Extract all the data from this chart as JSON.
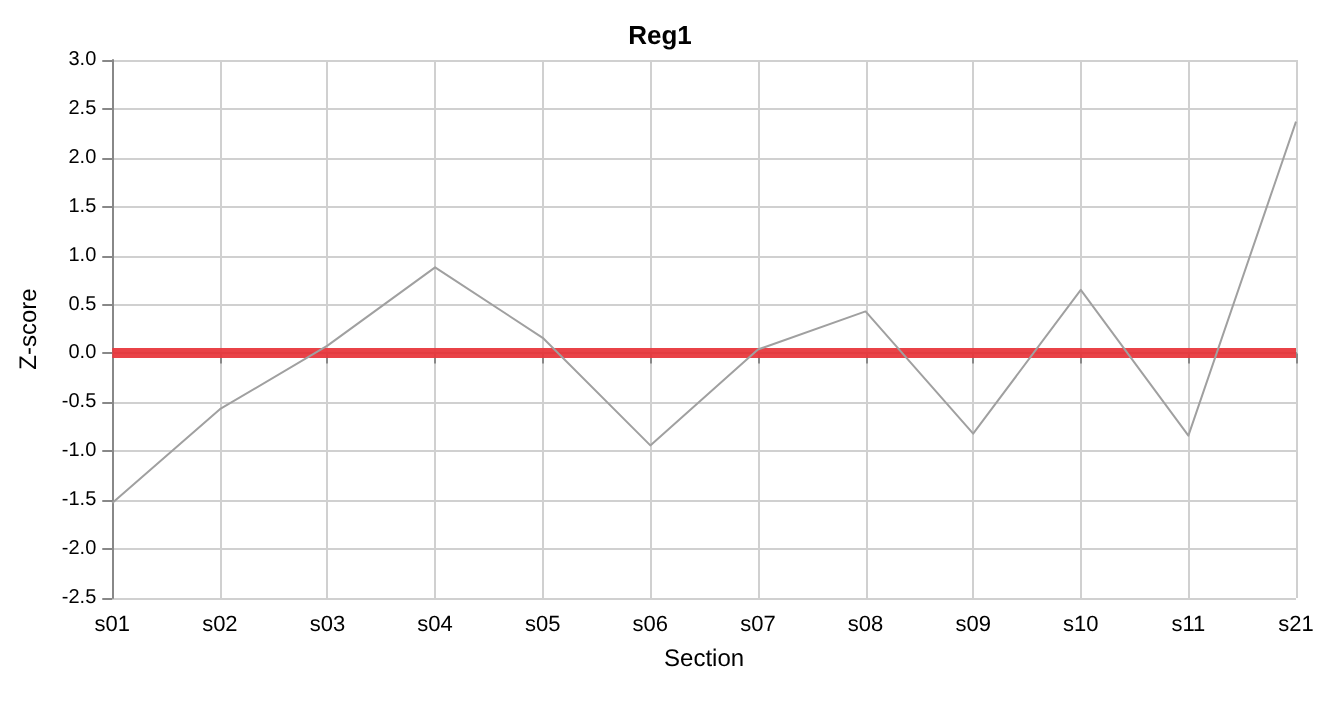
{
  "chart_data": {
    "type": "line",
    "title": "Reg1",
    "xlabel": "Section",
    "ylabel": "Z-score",
    "categories": [
      "s01",
      "s02",
      "s03",
      "s04",
      "s05",
      "s06",
      "s07",
      "s08",
      "s09",
      "s10",
      "s11",
      "s21"
    ],
    "series": [
      {
        "color": "#a0a0a0",
        "values": [
          -1.53,
          -0.57,
          0.08,
          0.88,
          0.16,
          -0.94,
          0.04,
          0.43,
          -0.82,
          0.65,
          -0.84,
          2.37
        ]
      }
    ],
    "ylim": [
      -2.5,
      3.0
    ],
    "yticks": [
      {
        "value": -2.5,
        "label": "-2.5"
      },
      {
        "value": -2,
        "label": "-2.0"
      },
      {
        "value": -1.5,
        "label": "-1.5"
      },
      {
        "value": -1,
        "label": "-1.0"
      },
      {
        "value": -0.5,
        "label": "-0.5"
      },
      {
        "value": 0,
        "label": "0.0"
      },
      {
        "value": 0.5,
        "label": "0.5"
      },
      {
        "value": 1,
        "label": "1.0"
      },
      {
        "value": 1.5,
        "label": "1.5"
      },
      {
        "value": 2,
        "label": "2.0"
      },
      {
        "value": 2.5,
        "label": "2.5"
      },
      {
        "value": 3,
        "label": "3.0"
      }
    ],
    "ref_lines": [
      {
        "axis": "y",
        "value": 0,
        "color": "#e8383d"
      }
    ],
    "grid": true,
    "marker": "none",
    "line_style": "solid"
  }
}
